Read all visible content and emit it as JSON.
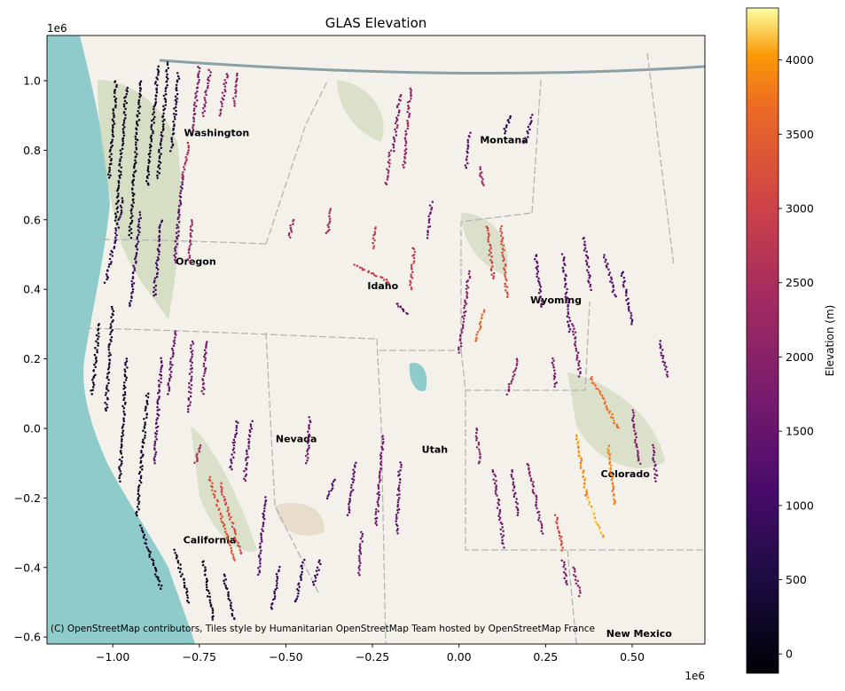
{
  "chart_data": {
    "type": "scatter",
    "title": "GLAS Elevation",
    "xlabel": "",
    "ylabel": "",
    "xlim": [
      -1.19,
      0.71
    ],
    "ylim": [
      -0.62,
      1.13
    ],
    "x_offset_label": "1e6",
    "y_offset_label": "1e6",
    "x_ticks": [
      {
        "value": -1.0,
        "label": "−1.00"
      },
      {
        "value": -0.75,
        "label": "−0.75"
      },
      {
        "value": -0.5,
        "label": "−0.50"
      },
      {
        "value": -0.25,
        "label": "−0.25"
      },
      {
        "value": 0.0,
        "label": "0.00"
      },
      {
        "value": 0.25,
        "label": "0.25"
      },
      {
        "value": 0.5,
        "label": "0.50"
      }
    ],
    "y_ticks": [
      {
        "value": -0.6,
        "label": "−0.6"
      },
      {
        "value": -0.4,
        "label": "−0.4"
      },
      {
        "value": -0.2,
        "label": "−0.2"
      },
      {
        "value": 0.0,
        "label": "0.0"
      },
      {
        "value": 0.2,
        "label": "0.2"
      },
      {
        "value": 0.4,
        "label": "0.4"
      },
      {
        "value": 0.6,
        "label": "0.6"
      },
      {
        "value": 0.8,
        "label": "0.8"
      },
      {
        "value": 1.0,
        "label": "1.0"
      }
    ],
    "colorbar": {
      "label": "Elevation (m)",
      "cmap": "inferno",
      "min": -130,
      "max": 4350,
      "ticks": [
        {
          "value": 0,
          "label": "0"
        },
        {
          "value": 500,
          "label": "500"
        },
        {
          "value": 1000,
          "label": "1000"
        },
        {
          "value": 1500,
          "label": "1500"
        },
        {
          "value": 2000,
          "label": "2000"
        },
        {
          "value": 2500,
          "label": "2500"
        },
        {
          "value": 3000,
          "label": "3000"
        },
        {
          "value": 3500,
          "label": "3500"
        },
        {
          "value": 4000,
          "label": "4000"
        }
      ]
    },
    "attribution": "(C) OpenStreetMap contributors, Tiles style by Humanitarian OpenStreetMap Team hosted by OpenStreetMap France",
    "map_labels": [
      {
        "text": "Nevada",
        "x": -0.47,
        "y": -0.04
      },
      {
        "text": "Utah",
        "x": -0.07,
        "y": -0.07
      },
      {
        "text": "Montana",
        "x": 0.13,
        "y": 0.82
      },
      {
        "text": "Idaho",
        "x": -0.22,
        "y": 0.4
      },
      {
        "text": "Oregon",
        "x": -0.76,
        "y": 0.47
      },
      {
        "text": "Washington",
        "x": -0.7,
        "y": 0.84
      },
      {
        "text": "Wyoming",
        "x": 0.28,
        "y": 0.36
      },
      {
        "text": "Colorado",
        "x": 0.48,
        "y": -0.14
      },
      {
        "text": "California",
        "x": -0.72,
        "y": -0.33
      },
      {
        "text": "New Mexico",
        "x": 0.52,
        "y": -0.6
      }
    ],
    "tracks": [
      {
        "x0": -0.99,
        "y0": 1.0,
        "x1": -1.01,
        "y1": 0.72,
        "elev": 150
      },
      {
        "x0": -0.96,
        "y0": 0.98,
        "x1": -0.99,
        "y1": 0.6,
        "elev": 200
      },
      {
        "x0": -0.92,
        "y0": 1.0,
        "x1": -0.95,
        "y1": 0.55,
        "elev": 120
      },
      {
        "x0": -0.87,
        "y0": 1.04,
        "x1": -0.9,
        "y1": 0.7,
        "elev": 180
      },
      {
        "x0": -0.84,
        "y0": 1.05,
        "x1": -0.87,
        "y1": 0.72,
        "elev": 250
      },
      {
        "x0": -0.81,
        "y0": 1.02,
        "x1": -0.83,
        "y1": 0.8,
        "elev": 400
      },
      {
        "x0": -0.97,
        "y0": 0.66,
        "x1": -1.02,
        "y1": 0.42,
        "elev": 700
      },
      {
        "x0": -0.92,
        "y0": 0.62,
        "x1": -0.95,
        "y1": 0.35,
        "elev": 850
      },
      {
        "x0": -0.86,
        "y0": 0.6,
        "x1": -0.88,
        "y1": 0.38,
        "elev": 1000
      },
      {
        "x0": -0.8,
        "y0": 0.72,
        "x1": -0.82,
        "y1": 0.48,
        "elev": 1350
      },
      {
        "x0": -0.75,
        "y0": 1.04,
        "x1": -0.77,
        "y1": 0.85,
        "elev": 1850
      },
      {
        "x0": -0.72,
        "y0": 1.03,
        "x1": -0.74,
        "y1": 0.9,
        "elev": 2000
      },
      {
        "x0": -0.67,
        "y0": 1.02,
        "x1": -0.69,
        "y1": 0.9,
        "elev": 2050
      },
      {
        "x0": -0.64,
        "y0": 1.02,
        "x1": -0.65,
        "y1": 0.93,
        "elev": 2100
      },
      {
        "x0": -0.77,
        "y0": 0.6,
        "x1": -0.78,
        "y1": 0.48,
        "elev": 2200
      },
      {
        "x0": -0.78,
        "y0": 0.82,
        "x1": -0.8,
        "y1": 0.72,
        "elev": 2500
      },
      {
        "x0": -1.04,
        "y0": 0.3,
        "x1": -1.06,
        "y1": 0.1,
        "elev": 100
      },
      {
        "x0": -1.0,
        "y0": 0.35,
        "x1": -1.02,
        "y1": 0.05,
        "elev": 300
      },
      {
        "x0": -0.96,
        "y0": 0.2,
        "x1": -0.98,
        "y1": -0.15,
        "elev": 250
      },
      {
        "x0": -0.9,
        "y0": 0.1,
        "x1": -0.93,
        "y1": -0.25,
        "elev": 200
      },
      {
        "x0": -0.86,
        "y0": 0.2,
        "x1": -0.88,
        "y1": -0.1,
        "elev": 1300
      },
      {
        "x0": -0.82,
        "y0": 0.28,
        "x1": -0.84,
        "y1": 0.1,
        "elev": 1500
      },
      {
        "x0": -0.77,
        "y0": 0.25,
        "x1": -0.78,
        "y1": 0.05,
        "elev": 1600
      },
      {
        "x0": -0.73,
        "y0": 0.25,
        "x1": -0.74,
        "y1": 0.1,
        "elev": 1700
      },
      {
        "x0": -0.92,
        "y0": -0.28,
        "x1": -0.86,
        "y1": -0.46,
        "elev": 150
      },
      {
        "x0": -0.82,
        "y0": -0.35,
        "x1": -0.78,
        "y1": -0.5,
        "elev": 150
      },
      {
        "x0": -0.74,
        "y0": -0.38,
        "x1": -0.71,
        "y1": -0.55,
        "elev": 100
      },
      {
        "x0": -0.68,
        "y0": -0.42,
        "x1": -0.65,
        "y1": -0.55,
        "elev": 300
      },
      {
        "x0": -0.72,
        "y0": -0.14,
        "x1": -0.65,
        "y1": -0.38,
        "elev": 3300
      },
      {
        "x0": -0.69,
        "y0": -0.16,
        "x1": -0.63,
        "y1": -0.36,
        "elev": 3100
      },
      {
        "x0": -0.75,
        "y0": -0.05,
        "x1": -0.76,
        "y1": -0.1,
        "elev": 2500
      },
      {
        "x0": -0.64,
        "y0": 0.02,
        "x1": -0.66,
        "y1": -0.12,
        "elev": 1400
      },
      {
        "x0": -0.6,
        "y0": 0.02,
        "x1": -0.62,
        "y1": -0.15,
        "elev": 1500
      },
      {
        "x0": -0.56,
        "y0": -0.2,
        "x1": -0.58,
        "y1": -0.42,
        "elev": 1300
      },
      {
        "x0": -0.52,
        "y0": -0.4,
        "x1": -0.54,
        "y1": -0.52,
        "elev": 800
      },
      {
        "x0": -0.45,
        "y0": -0.38,
        "x1": -0.47,
        "y1": -0.5,
        "elev": 700
      },
      {
        "x0": -0.4,
        "y0": -0.38,
        "x1": -0.42,
        "y1": -0.45,
        "elev": 900
      },
      {
        "x0": -0.36,
        "y0": -0.15,
        "x1": -0.38,
        "y1": -0.2,
        "elev": 1200
      },
      {
        "x0": -0.3,
        "y0": -0.1,
        "x1": -0.32,
        "y1": -0.25,
        "elev": 1400
      },
      {
        "x0": -0.28,
        "y0": -0.3,
        "x1": -0.29,
        "y1": -0.42,
        "elev": 1600
      },
      {
        "x0": -0.22,
        "y0": -0.02,
        "x1": -0.24,
        "y1": -0.28,
        "elev": 1700
      },
      {
        "x0": -0.17,
        "y0": -0.1,
        "x1": -0.18,
        "y1": -0.3,
        "elev": 1500
      },
      {
        "x0": -0.14,
        "y0": 0.98,
        "x1": -0.16,
        "y1": 0.75,
        "elev": 2200
      },
      {
        "x0": -0.17,
        "y0": 0.96,
        "x1": -0.19,
        "y1": 0.8,
        "elev": 1900
      },
      {
        "x0": -0.2,
        "y0": 0.8,
        "x1": -0.21,
        "y1": 0.7,
        "elev": 2300
      },
      {
        "x0": -0.24,
        "y0": 0.58,
        "x1": -0.25,
        "y1": 0.52,
        "elev": 2900
      },
      {
        "x0": -0.3,
        "y0": 0.47,
        "x1": -0.2,
        "y1": 0.42,
        "elev": 3000
      },
      {
        "x0": -0.18,
        "y0": 0.36,
        "x1": -0.15,
        "y1": 0.33,
        "elev": 1500
      },
      {
        "x0": -0.13,
        "y0": 0.52,
        "x1": -0.14,
        "y1": 0.4,
        "elev": 2900
      },
      {
        "x0": -0.37,
        "y0": 0.63,
        "x1": -0.38,
        "y1": 0.56,
        "elev": 2400
      },
      {
        "x0": -0.48,
        "y0": 0.6,
        "x1": -0.49,
        "y1": 0.55,
        "elev": 2300
      },
      {
        "x0": -0.08,
        "y0": 0.65,
        "x1": -0.09,
        "y1": 0.55,
        "elev": 1700
      },
      {
        "x0": 0.03,
        "y0": 0.85,
        "x1": 0.02,
        "y1": 0.75,
        "elev": 1500
      },
      {
        "x0": 0.06,
        "y0": 0.75,
        "x1": 0.07,
        "y1": 0.7,
        "elev": 2200
      },
      {
        "x0": 0.13,
        "y0": 0.85,
        "x1": 0.15,
        "y1": 0.9,
        "elev": 600
      },
      {
        "x0": 0.19,
        "y0": 0.82,
        "x1": 0.21,
        "y1": 0.9,
        "elev": 1000
      },
      {
        "x0": 0.08,
        "y0": 0.58,
        "x1": 0.1,
        "y1": 0.43,
        "elev": 3000
      },
      {
        "x0": 0.12,
        "y0": 0.58,
        "x1": 0.14,
        "y1": 0.38,
        "elev": 3200
      },
      {
        "x0": 0.07,
        "y0": 0.34,
        "x1": 0.05,
        "y1": 0.25,
        "elev": 3600
      },
      {
        "x0": 0.03,
        "y0": 0.45,
        "x1": 0.0,
        "y1": 0.22,
        "elev": 2000
      },
      {
        "x0": 0.17,
        "y0": 0.2,
        "x1": 0.14,
        "y1": 0.1,
        "elev": 2100
      },
      {
        "x0": 0.22,
        "y0": 0.5,
        "x1": 0.24,
        "y1": 0.35,
        "elev": 1300
      },
      {
        "x0": 0.3,
        "y0": 0.5,
        "x1": 0.32,
        "y1": 0.28,
        "elev": 1400
      },
      {
        "x0": 0.36,
        "y0": 0.55,
        "x1": 0.38,
        "y1": 0.4,
        "elev": 1500
      },
      {
        "x0": 0.42,
        "y0": 0.5,
        "x1": 0.45,
        "y1": 0.38,
        "elev": 1300
      },
      {
        "x0": 0.47,
        "y0": 0.45,
        "x1": 0.5,
        "y1": 0.3,
        "elev": 1200
      },
      {
        "x0": 0.27,
        "y0": 0.2,
        "x1": 0.28,
        "y1": 0.12,
        "elev": 1700
      },
      {
        "x0": 0.33,
        "y0": 0.3,
        "x1": 0.35,
        "y1": 0.15,
        "elev": 1800
      },
      {
        "x0": 0.38,
        "y0": 0.15,
        "x1": 0.46,
        "y1": 0.0,
        "elev": 3700
      },
      {
        "x0": 0.34,
        "y0": -0.02,
        "x1": 0.37,
        "y1": -0.2,
        "elev": 3900
      },
      {
        "x0": 0.43,
        "y0": -0.05,
        "x1": 0.45,
        "y1": -0.22,
        "elev": 3800
      },
      {
        "x0": 0.37,
        "y0": -0.2,
        "x1": 0.42,
        "y1": -0.32,
        "elev": 4200
      },
      {
        "x0": 0.1,
        "y0": -0.12,
        "x1": 0.13,
        "y1": -0.34,
        "elev": 1700
      },
      {
        "x0": 0.15,
        "y0": -0.12,
        "x1": 0.17,
        "y1": -0.25,
        "elev": 1600
      },
      {
        "x0": 0.2,
        "y0": -0.1,
        "x1": 0.24,
        "y1": -0.3,
        "elev": 1900
      },
      {
        "x0": 0.28,
        "y0": -0.25,
        "x1": 0.3,
        "y1": -0.35,
        "elev": 3200
      },
      {
        "x0": 0.3,
        "y0": -0.38,
        "x1": 0.31,
        "y1": -0.45,
        "elev": 1800
      },
      {
        "x0": 0.33,
        "y0": -0.4,
        "x1": 0.35,
        "y1": -0.48,
        "elev": 2000
      },
      {
        "x0": 0.5,
        "y0": 0.05,
        "x1": 0.52,
        "y1": -0.1,
        "elev": 1900
      },
      {
        "x0": 0.56,
        "y0": -0.05,
        "x1": 0.57,
        "y1": -0.15,
        "elev": 1700
      },
      {
        "x0": 0.58,
        "y0": 0.25,
        "x1": 0.6,
        "y1": 0.15,
        "elev": 1500
      },
      {
        "x0": 0.05,
        "y0": 0.0,
        "x1": 0.06,
        "y1": -0.1,
        "elev": 2000
      },
      {
        "x0": -0.43,
        "y0": 0.03,
        "x1": -0.44,
        "y1": -0.1,
        "elev": 1600
      }
    ]
  }
}
